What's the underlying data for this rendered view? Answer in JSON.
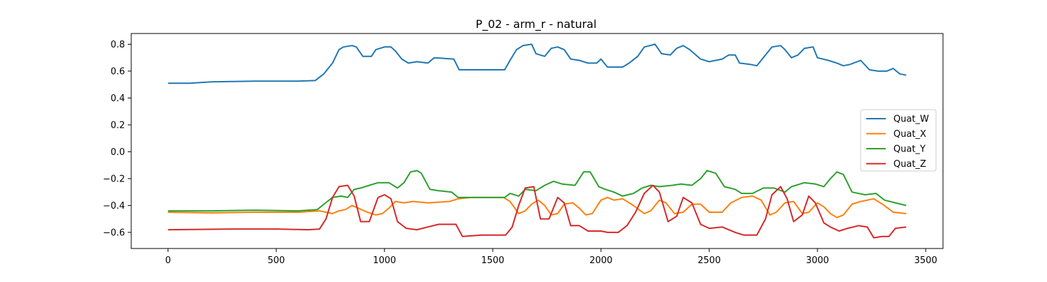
{
  "chart_data": {
    "type": "line",
    "title": "P_02 - arm_r - natural",
    "xlabel": "",
    "ylabel": "",
    "xlim": [
      -170,
      3580
    ],
    "ylim": [
      -0.72,
      0.88
    ],
    "x_ticks": [
      0,
      500,
      1000,
      1500,
      2000,
      2500,
      3000,
      3500
    ],
    "y_ticks": [
      -0.6,
      -0.4,
      -0.2,
      0.0,
      0.2,
      0.4,
      0.6,
      0.8
    ],
    "x_tick_labels": [
      "0",
      "500",
      "1000",
      "1500",
      "2000",
      "2500",
      "3000",
      "3500"
    ],
    "y_tick_labels": [
      "−0.6",
      "−0.4",
      "−0.2",
      "0.0",
      "0.2",
      "0.4",
      "0.6",
      "0.8"
    ],
    "grid": false,
    "legend": "center-right",
    "series": [
      {
        "name": "Quat_W",
        "color": "#1f77b4",
        "points": [
          [
            0,
            0.51
          ],
          [
            100,
            0.51
          ],
          [
            200,
            0.52
          ],
          [
            400,
            0.525
          ],
          [
            600,
            0.525
          ],
          [
            680,
            0.53
          ],
          [
            720,
            0.58
          ],
          [
            760,
            0.66
          ],
          [
            790,
            0.76
          ],
          [
            810,
            0.78
          ],
          [
            850,
            0.79
          ],
          [
            870,
            0.78
          ],
          [
            900,
            0.71
          ],
          [
            940,
            0.71
          ],
          [
            960,
            0.76
          ],
          [
            1000,
            0.78
          ],
          [
            1030,
            0.78
          ],
          [
            1050,
            0.75
          ],
          [
            1080,
            0.69
          ],
          [
            1110,
            0.66
          ],
          [
            1150,
            0.67
          ],
          [
            1200,
            0.66
          ],
          [
            1230,
            0.7
          ],
          [
            1320,
            0.69
          ],
          [
            1345,
            0.61
          ],
          [
            1400,
            0.61
          ],
          [
            1555,
            0.61
          ],
          [
            1580,
            0.68
          ],
          [
            1610,
            0.76
          ],
          [
            1640,
            0.79
          ],
          [
            1680,
            0.8
          ],
          [
            1700,
            0.73
          ],
          [
            1740,
            0.71
          ],
          [
            1770,
            0.77
          ],
          [
            1800,
            0.78
          ],
          [
            1830,
            0.76
          ],
          [
            1860,
            0.69
          ],
          [
            1900,
            0.68
          ],
          [
            1940,
            0.66
          ],
          [
            1980,
            0.66
          ],
          [
            2000,
            0.69
          ],
          [
            2030,
            0.63
          ],
          [
            2100,
            0.63
          ],
          [
            2130,
            0.66
          ],
          [
            2170,
            0.71
          ],
          [
            2200,
            0.78
          ],
          [
            2250,
            0.8
          ],
          [
            2280,
            0.73
          ],
          [
            2320,
            0.72
          ],
          [
            2350,
            0.77
          ],
          [
            2380,
            0.79
          ],
          [
            2410,
            0.76
          ],
          [
            2460,
            0.69
          ],
          [
            2500,
            0.67
          ],
          [
            2560,
            0.69
          ],
          [
            2590,
            0.72
          ],
          [
            2620,
            0.72
          ],
          [
            2640,
            0.66
          ],
          [
            2690,
            0.65
          ],
          [
            2720,
            0.64
          ],
          [
            2760,
            0.72
          ],
          [
            2790,
            0.78
          ],
          [
            2830,
            0.79
          ],
          [
            2850,
            0.76
          ],
          [
            2880,
            0.7
          ],
          [
            2910,
            0.72
          ],
          [
            2940,
            0.77
          ],
          [
            2980,
            0.78
          ],
          [
            3000,
            0.7
          ],
          [
            3050,
            0.68
          ],
          [
            3090,
            0.66
          ],
          [
            3120,
            0.64
          ],
          [
            3150,
            0.65
          ],
          [
            3200,
            0.68
          ],
          [
            3240,
            0.61
          ],
          [
            3280,
            0.6
          ],
          [
            3320,
            0.6
          ],
          [
            3350,
            0.62
          ],
          [
            3380,
            0.58
          ],
          [
            3410,
            0.57
          ]
        ]
      },
      {
        "name": "Quat_X",
        "color": "#ff7f0e",
        "points": [
          [
            0,
            -0.45
          ],
          [
            200,
            -0.455
          ],
          [
            400,
            -0.45
          ],
          [
            600,
            -0.45
          ],
          [
            700,
            -0.44
          ],
          [
            760,
            -0.46
          ],
          [
            790,
            -0.44
          ],
          [
            820,
            -0.43
          ],
          [
            850,
            -0.4
          ],
          [
            880,
            -0.42
          ],
          [
            920,
            -0.45
          ],
          [
            960,
            -0.47
          ],
          [
            990,
            -0.46
          ],
          [
            1020,
            -0.42
          ],
          [
            1050,
            -0.37
          ],
          [
            1090,
            -0.38
          ],
          [
            1130,
            -0.37
          ],
          [
            1200,
            -0.38
          ],
          [
            1300,
            -0.37
          ],
          [
            1340,
            -0.35
          ],
          [
            1400,
            -0.34
          ],
          [
            1550,
            -0.34
          ],
          [
            1580,
            -0.37
          ],
          [
            1620,
            -0.46
          ],
          [
            1650,
            -0.44
          ],
          [
            1680,
            -0.39
          ],
          [
            1710,
            -0.36
          ],
          [
            1740,
            -0.4
          ],
          [
            1770,
            -0.47
          ],
          [
            1800,
            -0.46
          ],
          [
            1830,
            -0.39
          ],
          [
            1870,
            -0.38
          ],
          [
            1900,
            -0.42
          ],
          [
            1930,
            -0.47
          ],
          [
            1960,
            -0.46
          ],
          [
            2000,
            -0.36
          ],
          [
            2030,
            -0.34
          ],
          [
            2060,
            -0.36
          ],
          [
            2100,
            -0.35
          ],
          [
            2150,
            -0.4
          ],
          [
            2200,
            -0.46
          ],
          [
            2230,
            -0.44
          ],
          [
            2270,
            -0.36
          ],
          [
            2300,
            -0.38
          ],
          [
            2340,
            -0.46
          ],
          [
            2380,
            -0.45
          ],
          [
            2420,
            -0.39
          ],
          [
            2460,
            -0.39
          ],
          [
            2500,
            -0.45
          ],
          [
            2560,
            -0.45
          ],
          [
            2600,
            -0.38
          ],
          [
            2650,
            -0.34
          ],
          [
            2700,
            -0.33
          ],
          [
            2740,
            -0.36
          ],
          [
            2780,
            -0.47
          ],
          [
            2810,
            -0.45
          ],
          [
            2850,
            -0.38
          ],
          [
            2890,
            -0.37
          ],
          [
            2930,
            -0.46
          ],
          [
            2960,
            -0.45
          ],
          [
            3000,
            -0.38
          ],
          [
            3030,
            -0.41
          ],
          [
            3060,
            -0.46
          ],
          [
            3090,
            -0.49
          ],
          [
            3120,
            -0.47
          ],
          [
            3160,
            -0.39
          ],
          [
            3200,
            -0.37
          ],
          [
            3260,
            -0.35
          ],
          [
            3300,
            -0.39
          ],
          [
            3350,
            -0.45
          ],
          [
            3410,
            -0.46
          ]
        ]
      },
      {
        "name": "Quat_Y",
        "color": "#2ca02c",
        "points": [
          [
            0,
            -0.44
          ],
          [
            200,
            -0.44
          ],
          [
            400,
            -0.435
          ],
          [
            600,
            -0.44
          ],
          [
            690,
            -0.43
          ],
          [
            720,
            -0.39
          ],
          [
            760,
            -0.34
          ],
          [
            800,
            -0.33
          ],
          [
            830,
            -0.34
          ],
          [
            860,
            -0.28
          ],
          [
            890,
            -0.27
          ],
          [
            930,
            -0.25
          ],
          [
            970,
            -0.23
          ],
          [
            1020,
            -0.23
          ],
          [
            1060,
            -0.27
          ],
          [
            1090,
            -0.23
          ],
          [
            1120,
            -0.15
          ],
          [
            1150,
            -0.14
          ],
          [
            1170,
            -0.16
          ],
          [
            1210,
            -0.28
          ],
          [
            1250,
            -0.29
          ],
          [
            1310,
            -0.3
          ],
          [
            1340,
            -0.34
          ],
          [
            1555,
            -0.34
          ],
          [
            1580,
            -0.31
          ],
          [
            1620,
            -0.33
          ],
          [
            1650,
            -0.28
          ],
          [
            1700,
            -0.29
          ],
          [
            1740,
            -0.25
          ],
          [
            1780,
            -0.22
          ],
          [
            1820,
            -0.24
          ],
          [
            1880,
            -0.25
          ],
          [
            1920,
            -0.15
          ],
          [
            1950,
            -0.15
          ],
          [
            1990,
            -0.26
          ],
          [
            2020,
            -0.28
          ],
          [
            2060,
            -0.3
          ],
          [
            2100,
            -0.33
          ],
          [
            2150,
            -0.31
          ],
          [
            2190,
            -0.27
          ],
          [
            2230,
            -0.25
          ],
          [
            2270,
            -0.26
          ],
          [
            2330,
            -0.25
          ],
          [
            2370,
            -0.24
          ],
          [
            2420,
            -0.25
          ],
          [
            2460,
            -0.2
          ],
          [
            2490,
            -0.14
          ],
          [
            2530,
            -0.16
          ],
          [
            2570,
            -0.26
          ],
          [
            2620,
            -0.28
          ],
          [
            2650,
            -0.31
          ],
          [
            2700,
            -0.31
          ],
          [
            2750,
            -0.27
          ],
          [
            2800,
            -0.27
          ],
          [
            2850,
            -0.3
          ],
          [
            2880,
            -0.26
          ],
          [
            2940,
            -0.23
          ],
          [
            2990,
            -0.24
          ],
          [
            3030,
            -0.26
          ],
          [
            3060,
            -0.2
          ],
          [
            3090,
            -0.15
          ],
          [
            3120,
            -0.17
          ],
          [
            3160,
            -0.3
          ],
          [
            3220,
            -0.32
          ],
          [
            3270,
            -0.31
          ],
          [
            3310,
            -0.36
          ],
          [
            3360,
            -0.38
          ],
          [
            3410,
            -0.4
          ]
        ]
      },
      {
        "name": "Quat_Z",
        "color": "#d62728",
        "points": [
          [
            0,
            -0.58
          ],
          [
            300,
            -0.575
          ],
          [
            500,
            -0.575
          ],
          [
            650,
            -0.58
          ],
          [
            700,
            -0.575
          ],
          [
            730,
            -0.5
          ],
          [
            760,
            -0.34
          ],
          [
            790,
            -0.26
          ],
          [
            830,
            -0.25
          ],
          [
            860,
            -0.33
          ],
          [
            890,
            -0.52
          ],
          [
            930,
            -0.52
          ],
          [
            970,
            -0.34
          ],
          [
            1000,
            -0.32
          ],
          [
            1030,
            -0.35
          ],
          [
            1060,
            -0.52
          ],
          [
            1100,
            -0.57
          ],
          [
            1150,
            -0.58
          ],
          [
            1200,
            -0.56
          ],
          [
            1250,
            -0.54
          ],
          [
            1330,
            -0.54
          ],
          [
            1360,
            -0.63
          ],
          [
            1450,
            -0.62
          ],
          [
            1560,
            -0.62
          ],
          [
            1590,
            -0.56
          ],
          [
            1620,
            -0.4
          ],
          [
            1650,
            -0.27
          ],
          [
            1690,
            -0.26
          ],
          [
            1720,
            -0.5
          ],
          [
            1760,
            -0.5
          ],
          [
            1800,
            -0.34
          ],
          [
            1830,
            -0.38
          ],
          [
            1860,
            -0.55
          ],
          [
            1900,
            -0.55
          ],
          [
            1940,
            -0.59
          ],
          [
            2000,
            -0.59
          ],
          [
            2030,
            -0.6
          ],
          [
            2080,
            -0.6
          ],
          [
            2120,
            -0.55
          ],
          [
            2160,
            -0.45
          ],
          [
            2200,
            -0.31
          ],
          [
            2240,
            -0.25
          ],
          [
            2270,
            -0.3
          ],
          [
            2310,
            -0.52
          ],
          [
            2350,
            -0.48
          ],
          [
            2380,
            -0.34
          ],
          [
            2420,
            -0.38
          ],
          [
            2460,
            -0.54
          ],
          [
            2500,
            -0.57
          ],
          [
            2560,
            -0.56
          ],
          [
            2620,
            -0.6
          ],
          [
            2660,
            -0.62
          ],
          [
            2720,
            -0.62
          ],
          [
            2760,
            -0.5
          ],
          [
            2790,
            -0.32
          ],
          [
            2830,
            -0.26
          ],
          [
            2860,
            -0.35
          ],
          [
            2890,
            -0.52
          ],
          [
            2930,
            -0.47
          ],
          [
            2960,
            -0.33
          ],
          [
            2990,
            -0.38
          ],
          [
            3030,
            -0.53
          ],
          [
            3060,
            -0.56
          ],
          [
            3100,
            -0.59
          ],
          [
            3140,
            -0.57
          ],
          [
            3190,
            -0.55
          ],
          [
            3230,
            -0.56
          ],
          [
            3260,
            -0.64
          ],
          [
            3300,
            -0.63
          ],
          [
            3330,
            -0.63
          ],
          [
            3360,
            -0.57
          ],
          [
            3410,
            -0.56
          ]
        ]
      }
    ]
  }
}
